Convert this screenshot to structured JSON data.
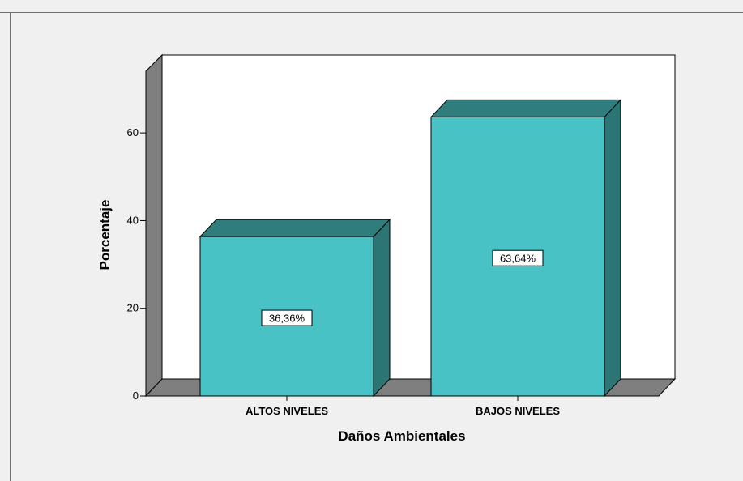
{
  "chart_data": {
    "type": "bar",
    "categories": [
      "ALTOS NIVELES",
      "BAJOS NIVELES"
    ],
    "values": [
      36.36,
      63.64
    ],
    "data_labels": [
      "36,36%",
      "63,64%"
    ],
    "title": "",
    "xlabel": "Daños Ambientales",
    "ylabel": "Porcentaje",
    "ylim": [
      0,
      75
    ],
    "yticks": [
      0,
      20,
      40,
      60
    ],
    "ytick_labels": [
      "0",
      "20",
      "40",
      "60"
    ],
    "grid": false,
    "legend": "none",
    "three_d": true,
    "colors": {
      "bar_front": "#48c2c5",
      "bar_top": "#2f7d7d",
      "bar_side": "#2c7575",
      "wall_back": "#ffffff",
      "wall_side": "#7f7f7f",
      "floor": "#7f7f7f",
      "background": "#f0f0f0"
    }
  }
}
